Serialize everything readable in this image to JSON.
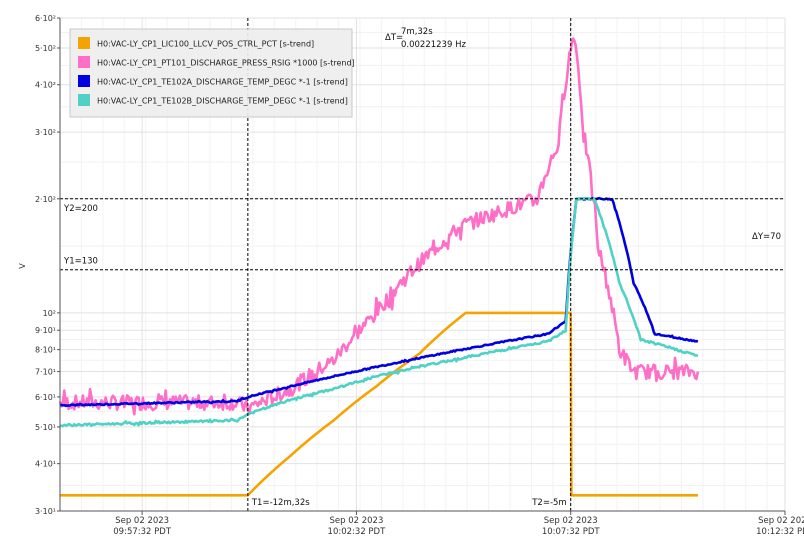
{
  "chart_data": {
    "type": "line",
    "title": "",
    "xlabel": "",
    "ylabel": "V",
    "y_scale": "log",
    "ylim": [
      30,
      600
    ],
    "xlim": [
      "2023-09-02 09:55:37",
      "2023-09-02 10:12:32"
    ],
    "grid": true,
    "legend_position": "top-left",
    "y_ticks": [
      {
        "value": 30,
        "label": "3·10¹"
      },
      {
        "value": 40,
        "label": "4·10¹"
      },
      {
        "value": 50,
        "label": "5·10¹"
      },
      {
        "value": 60,
        "label": "6·10¹"
      },
      {
        "value": 70,
        "label": "7·10¹"
      },
      {
        "value": 80,
        "label": "8·10¹"
      },
      {
        "value": 90,
        "label": "9·10¹"
      },
      {
        "value": 100,
        "label": "10²"
      },
      {
        "value": 200,
        "label": "2·10²"
      },
      {
        "value": 300,
        "label": "3·10²"
      },
      {
        "value": 400,
        "label": "4·10²"
      },
      {
        "value": 500,
        "label": "5·10²"
      },
      {
        "value": 600,
        "label": "6·10²"
      }
    ],
    "x_ticks": [
      {
        "time": "2023-09-02 09:57:32",
        "date": "Sep 02 2023",
        "clock": "09:57:32 PDT"
      },
      {
        "time": "2023-09-02 10:02:32",
        "date": "Sep 02 2023",
        "clock": "10:02:32 PDT"
      },
      {
        "time": "2023-09-02 10:07:32",
        "date": "Sep 02 2023",
        "clock": "10:07:32 PDT"
      },
      {
        "time": "2023-09-02 10:12:32",
        "date": "Sep 02 2023",
        "clock": "10:12:32 PDT"
      }
    ],
    "cursors": {
      "t1": {
        "time": "2023-09-02 10:00:00",
        "label": "T1=-12m,32s"
      },
      "t2": {
        "time": "2023-09-02 10:07:32",
        "label": "T2=-5m"
      },
      "y1": {
        "value": 130,
        "label": "Y1=130"
      },
      "y2": {
        "value": 200,
        "label": "Y2=200"
      },
      "delta_t": {
        "label": "ΔT=",
        "value": "7m,32s",
        "freq": "0.00221239 Hz"
      },
      "delta_y": {
        "label": "ΔY=70"
      }
    },
    "series": [
      {
        "name": "H0:VAC-LY_CP1_LIC100_LLCV_POS_CTRL_PCT [s-trend]",
        "color": "#f5a300",
        "noise": 0,
        "points": [
          [
            "2023-09-02 09:55:37",
            33
          ],
          [
            "2023-09-02 09:59:45",
            33
          ],
          [
            "2023-09-02 10:00:00",
            33
          ],
          [
            "2023-09-02 10:01:00",
            42
          ],
          [
            "2023-09-02 10:02:00",
            52
          ],
          [
            "2023-09-02 10:03:00",
            64
          ],
          [
            "2023-09-02 10:04:00",
            78
          ],
          [
            "2023-09-02 10:05:05",
            100
          ],
          [
            "2023-09-02 10:07:32",
            100
          ],
          [
            "2023-09-02 10:07:33",
            33
          ],
          [
            "2023-09-02 10:10:30",
            33
          ]
        ]
      },
      {
        "name": "H0:VAC-LY_CP1_PT101_DISCHARGE_PRESS_RSIG *1000 [s-trend]",
        "color": "#ff6ec7",
        "noise": 0.045,
        "points": [
          [
            "2023-09-02 09:55:37",
            58
          ],
          [
            "2023-09-02 09:59:45",
            58
          ],
          [
            "2023-09-02 10:00:00",
            56
          ],
          [
            "2023-09-02 10:01:00",
            63
          ],
          [
            "2023-09-02 10:02:00",
            75
          ],
          [
            "2023-09-02 10:03:00",
            100
          ],
          [
            "2023-09-02 10:04:00",
            135
          ],
          [
            "2023-09-02 10:05:00",
            170
          ],
          [
            "2023-09-02 10:06:00",
            187
          ],
          [
            "2023-09-02 10:06:45",
            200
          ],
          [
            "2023-09-02 10:07:15",
            280
          ],
          [
            "2023-09-02 10:07:32",
            500
          ],
          [
            "2023-09-02 10:07:37",
            545
          ],
          [
            "2023-09-02 10:07:50",
            300
          ],
          [
            "2023-09-02 10:08:10",
            150
          ],
          [
            "2023-09-02 10:08:40",
            80
          ],
          [
            "2023-09-02 10:09:00",
            70
          ],
          [
            "2023-09-02 10:10:30",
            70
          ]
        ]
      },
      {
        "name": "H0:VAC-LY_CP1_TE102A_DISCHARGE_TEMP_DEGC *-1 [s-trend]",
        "color": "#0000e0",
        "noise": 0.004,
        "points": [
          [
            "2023-09-02 09:55:37",
            57
          ],
          [
            "2023-09-02 09:59:45",
            58.5
          ],
          [
            "2023-09-02 10:00:00",
            60
          ],
          [
            "2023-09-02 10:01:00",
            64
          ],
          [
            "2023-09-02 10:02:00",
            68
          ],
          [
            "2023-09-02 10:03:00",
            72
          ],
          [
            "2023-09-02 10:04:00",
            76
          ],
          [
            "2023-09-02 10:05:00",
            80
          ],
          [
            "2023-09-02 10:06:00",
            84
          ],
          [
            "2023-09-02 10:07:00",
            88
          ],
          [
            "2023-09-02 10:07:25",
            95
          ],
          [
            "2023-09-02 10:07:40",
            200
          ],
          [
            "2023-09-02 10:08:30",
            200
          ],
          [
            "2023-09-02 10:09:00",
            120
          ],
          [
            "2023-09-02 10:09:30",
            88
          ],
          [
            "2023-09-02 10:10:30",
            84
          ]
        ]
      },
      {
        "name": "H0:VAC-LY_CP1_TE102B_DISCHARGE_TEMP_DEGC *-1 [s-trend]",
        "color": "#4fd1c5",
        "noise": 0.006,
        "points": [
          [
            "2023-09-02 09:55:37",
            50.5
          ],
          [
            "2023-09-02 09:59:45",
            52
          ],
          [
            "2023-09-02 10:00:00",
            54
          ],
          [
            "2023-09-02 10:01:00",
            59
          ],
          [
            "2023-09-02 10:02:00",
            63
          ],
          [
            "2023-09-02 10:03:00",
            68
          ],
          [
            "2023-09-02 10:04:00",
            72
          ],
          [
            "2023-09-02 10:05:00",
            76
          ],
          [
            "2023-09-02 10:06:00",
            80
          ],
          [
            "2023-09-02 10:07:00",
            84
          ],
          [
            "2023-09-02 10:07:25",
            90
          ],
          [
            "2023-09-02 10:07:40",
            200
          ],
          [
            "2023-09-02 10:08:05",
            200
          ],
          [
            "2023-09-02 10:08:40",
            120
          ],
          [
            "2023-09-02 10:09:10",
            85
          ],
          [
            "2023-09-02 10:10:30",
            77
          ]
        ]
      }
    ]
  }
}
